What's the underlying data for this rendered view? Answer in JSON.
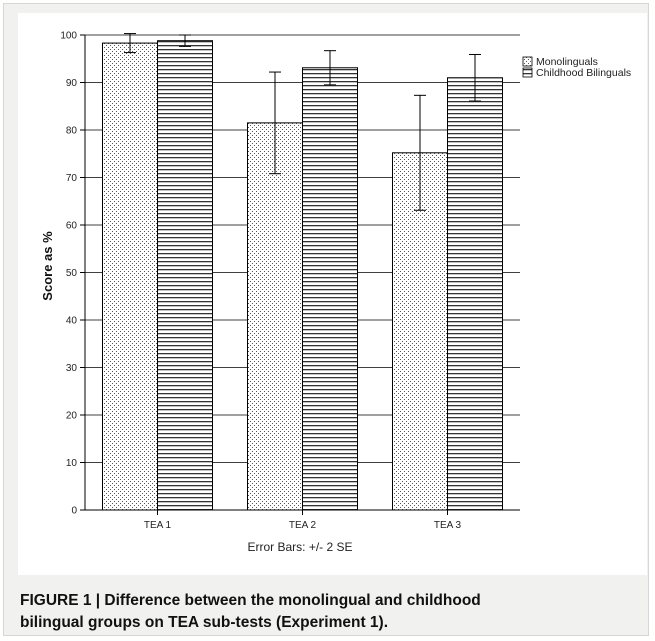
{
  "chart_data": {
    "type": "bar",
    "categories": [
      "TEA 1",
      "TEA 2",
      "TEA 3"
    ],
    "series": [
      {
        "name": "Monolinguals",
        "values": [
          98.3,
          81.5,
          75.2
        ],
        "error": [
          2.0,
          10.7,
          12.1
        ],
        "pattern": "dots"
      },
      {
        "name": "Childhood Bilinguals",
        "values": [
          98.8,
          93.1,
          91.0
        ],
        "error": [
          1.2,
          3.6,
          4.9
        ],
        "pattern": "hstripes"
      }
    ],
    "ylabel": "Score as %",
    "xlabel": "",
    "ylim": [
      0,
      100
    ],
    "yticks": [
      0,
      10,
      20,
      30,
      40,
      50,
      60,
      70,
      80,
      90,
      100
    ],
    "grid": true,
    "legend_position": "top-right",
    "footnote": "Error Bars: +/- 2 SE"
  },
  "caption": {
    "line1": "FIGURE 1 | Difference between the monolingual and childhood",
    "line2": "bilingual groups on TEA sub-tests (Experiment 1)."
  }
}
